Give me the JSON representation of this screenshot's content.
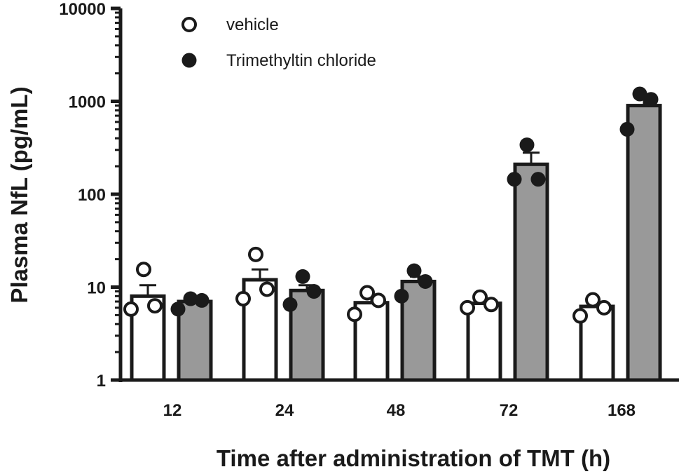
{
  "chart_data": {
    "type": "bar",
    "xlabel": "Time after administration of TMT (h)",
    "ylabel": "Plasma NfL (pg/mL)",
    "yscale": "log",
    "ylim": [
      1,
      10000
    ],
    "yticks": [
      1,
      10,
      100,
      1000,
      10000
    ],
    "ytick_labels": [
      "1",
      "10",
      "100",
      "1000",
      "10000"
    ],
    "categories": [
      "12",
      "24",
      "48",
      "72",
      "168"
    ],
    "legend_position": "top-left",
    "series": [
      {
        "name": "vehicle",
        "bar_fill": "#ffffff",
        "marker": "open-circle",
        "values": [
          8.0,
          12.0,
          6.8,
          6.7,
          6.2
        ],
        "sem": [
          2.5,
          3.5,
          0.8,
          0.5,
          0.6
        ],
        "points": [
          [
            5.8,
            15.5,
            6.3
          ],
          [
            7.5,
            22.5,
            9.5
          ],
          [
            5.1,
            8.7,
            7.2
          ],
          [
            6.0,
            7.8,
            6.5
          ],
          [
            4.9,
            7.3,
            6.0
          ]
        ]
      },
      {
        "name": "Trimethyltin chloride",
        "bar_fill": "#999999",
        "marker": "filled-circle",
        "values": [
          7.0,
          9.2,
          11.5,
          210,
          900
        ],
        "sem": [
          0.6,
          1.3,
          1.5,
          70,
          180
        ],
        "points": [
          [
            5.8,
            7.5,
            7.2
          ],
          [
            6.5,
            13.0,
            9.0
          ],
          [
            8.0,
            15.0,
            11.5
          ],
          [
            145,
            340,
            145
          ],
          [
            500,
            1200,
            1050
          ]
        ]
      }
    ]
  }
}
